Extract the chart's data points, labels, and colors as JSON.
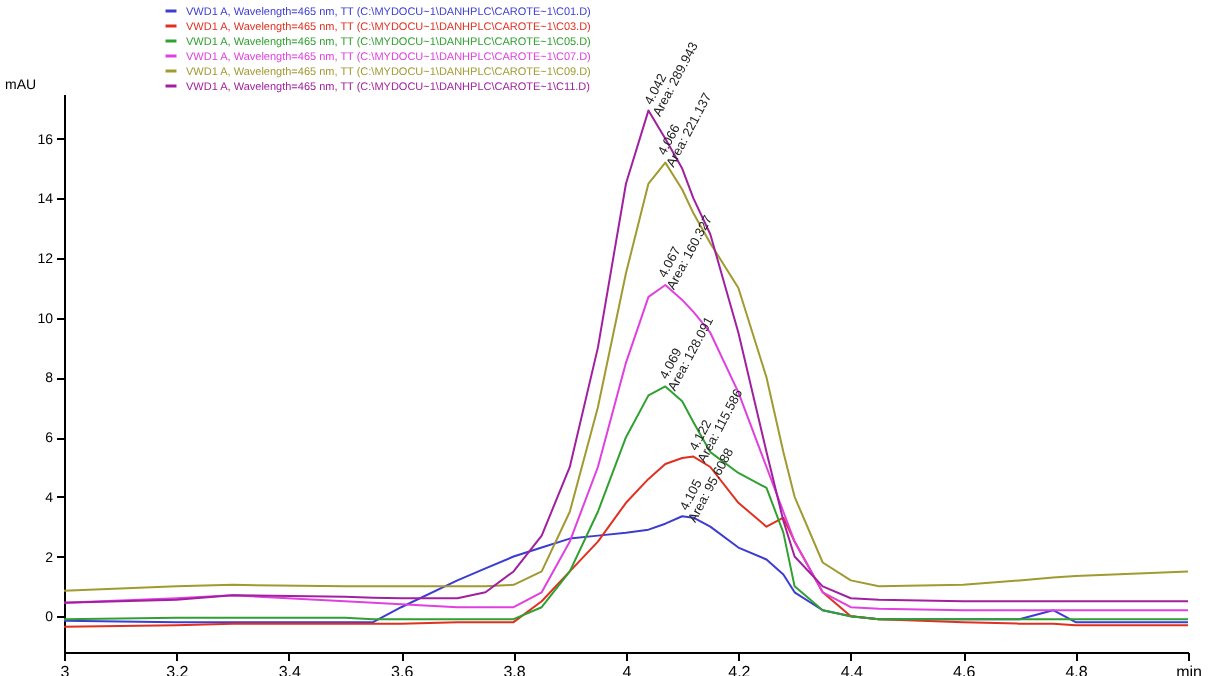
{
  "chart_data": {
    "type": "line",
    "ylabel": "mAU",
    "legend": "top left",
    "xlim": [
      3,
      5.0
    ],
    "ylim": [
      -1.2,
      17.5
    ],
    "xticks": [
      3,
      3.2,
      3.4,
      3.6,
      3.8,
      4,
      4.2,
      4.4,
      4.6,
      4.8,
      {
        "value": 5,
        "label": "min"
      }
    ],
    "yticks": [
      0,
      2,
      4,
      6,
      8,
      10,
      12,
      14,
      16
    ],
    "x": [
      3,
      3.2,
      3.3,
      3.5,
      3.55,
      3.6,
      3.7,
      3.75,
      3.8,
      3.85,
      3.9,
      3.95,
      4.0,
      4.04,
      4.07,
      4.1,
      4.12,
      4.15,
      4.2,
      4.25,
      4.28,
      4.3,
      4.35,
      4.4,
      4.45,
      4.6,
      4.7,
      4.76,
      4.8,
      5.0
    ],
    "series": [
      {
        "name": "VWD1 A, Wavelength=465 nm, TT (C:\\MYDOCU~1\\DANHPLC\\CAROTE~1\\C01.D)",
        "color": "#3c3cd2",
        "values": [
          -0.15,
          -0.2,
          -0.2,
          -0.2,
          -0.2,
          0.3,
          1.2,
          1.6,
          2.0,
          2.3,
          2.6,
          2.7,
          2.8,
          2.9,
          3.1,
          3.35,
          3.3,
          3.0,
          2.3,
          1.9,
          1.4,
          0.8,
          0.2,
          0.0,
          -0.1,
          -0.1,
          -0.1,
          0.2,
          -0.2,
          -0.2
        ]
      },
      {
        "name": "VWD1 A, Wavelength=465 nm, TT (C:\\MYDOCU~1\\DANHPLC\\CAROTE~1\\C03.D)",
        "color": "#e03020",
        "values": [
          -0.35,
          -0.3,
          -0.25,
          -0.25,
          -0.25,
          -0.25,
          -0.2,
          -0.2,
          -0.2,
          0.5,
          1.5,
          2.5,
          3.8,
          4.6,
          5.1,
          5.3,
          5.35,
          5.0,
          3.8,
          3.0,
          3.3,
          2.5,
          0.8,
          0.0,
          -0.1,
          -0.2,
          -0.25,
          -0.25,
          -0.3,
          -0.3
        ]
      },
      {
        "name": "VWD1 A, Wavelength=465 nm, TT (C:\\MYDOCU~1\\DANHPLC\\CAROTE~1\\C05.D)",
        "color": "#30a030",
        "values": [
          -0.1,
          -0.05,
          -0.05,
          -0.05,
          -0.1,
          -0.1,
          -0.1,
          -0.1,
          -0.1,
          0.3,
          1.5,
          3.5,
          6.0,
          7.4,
          7.7,
          7.2,
          6.5,
          5.5,
          4.8,
          4.3,
          2.8,
          1.0,
          0.2,
          0.0,
          -0.1,
          -0.1,
          -0.1,
          -0.1,
          -0.1,
          -0.1
        ]
      },
      {
        "name": "VWD1 A, Wavelength=465 nm, TT (C:\\MYDOCU~1\\DANHPLC\\CAROTE~1\\C07.D)",
        "color": "#e040e0",
        "values": [
          0.45,
          0.6,
          0.7,
          0.5,
          0.45,
          0.4,
          0.3,
          0.3,
          0.3,
          0.8,
          2.5,
          5.0,
          8.5,
          10.7,
          11.1,
          10.6,
          10.2,
          9.5,
          7.5,
          5.0,
          3.5,
          2.5,
          0.8,
          0.3,
          0.25,
          0.2,
          0.2,
          0.2,
          0.2,
          0.2
        ]
      },
      {
        "name": "VWD1 A, Wavelength=465 nm, TT (C:\\MYDOCU~1\\DANHPLC\\CAROTE~1\\C09.D)",
        "color": "#a09a30",
        "values": [
          0.85,
          1.0,
          1.05,
          1.0,
          1.0,
          1.0,
          1.0,
          1.0,
          1.05,
          1.5,
          3.5,
          7.0,
          11.5,
          14.5,
          15.2,
          14.3,
          13.5,
          12.5,
          11.0,
          8.0,
          5.5,
          4.0,
          1.8,
          1.2,
          1.0,
          1.05,
          1.2,
          1.3,
          1.35,
          1.5
        ]
      },
      {
        "name": "VWD1 A, Wavelength=465 nm, TT (C:\\MYDOCU~1\\DANHPLC\\CAROTE~1\\C11.D)",
        "color": "#a020a0",
        "values": [
          0.45,
          0.55,
          0.7,
          0.65,
          0.62,
          0.6,
          0.6,
          0.8,
          1.5,
          2.7,
          5.0,
          9.0,
          14.5,
          16.95,
          16.0,
          15.0,
          14.0,
          12.8,
          9.5,
          5.5,
          3.2,
          2.0,
          1.0,
          0.6,
          0.55,
          0.5,
          0.5,
          0.5,
          0.5,
          0.5
        ]
      }
    ],
    "annotations": [
      {
        "text": "4.105",
        "x": 4.105,
        "y": 3.4
      },
      {
        "text": "Area: 95.6088",
        "x": 4.12,
        "y": 3.0
      },
      {
        "text": "4.122",
        "x": 4.122,
        "y": 5.4
      },
      {
        "text": "Area: 115.586",
        "x": 4.137,
        "y": 5.0
      },
      {
        "text": "4.069",
        "x": 4.069,
        "y": 7.8
      },
      {
        "text": "Area: 128.091",
        "x": 4.084,
        "y": 7.4
      },
      {
        "text": "4.067",
        "x": 4.067,
        "y": 11.2
      },
      {
        "text": "Area: 160.327",
        "x": 4.082,
        "y": 10.8
      },
      {
        "text": "4.066",
        "x": 4.066,
        "y": 15.3
      },
      {
        "text": "Area: 221.137",
        "x": 4.081,
        "y": 14.9
      },
      {
        "text": "4.042",
        "x": 4.042,
        "y": 17.0
      },
      {
        "text": "Area: 289.943",
        "x": 4.057,
        "y": 16.6
      }
    ]
  }
}
